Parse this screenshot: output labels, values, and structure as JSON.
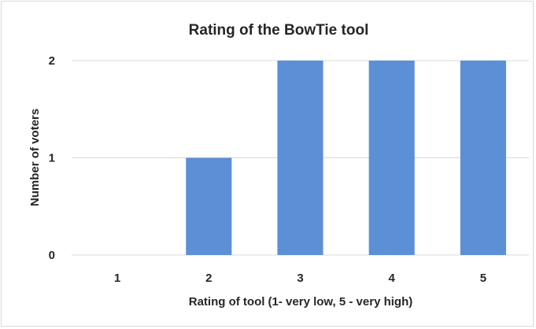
{
  "chart_data": {
    "type": "bar",
    "title": "Rating of the BowTie tool",
    "xlabel": "Rating of tool (1- very low, 5 - very high)",
    "ylabel": "Number of voters",
    "categories": [
      "1",
      "2",
      "3",
      "4",
      "5"
    ],
    "values": [
      0,
      1,
      2,
      2,
      2
    ],
    "ylim": [
      0,
      2
    ],
    "yticks": [
      "0",
      "1",
      "2"
    ],
    "grid": true,
    "bar_color": "#5b8fd6",
    "grid_color": "#d9d9d9"
  }
}
